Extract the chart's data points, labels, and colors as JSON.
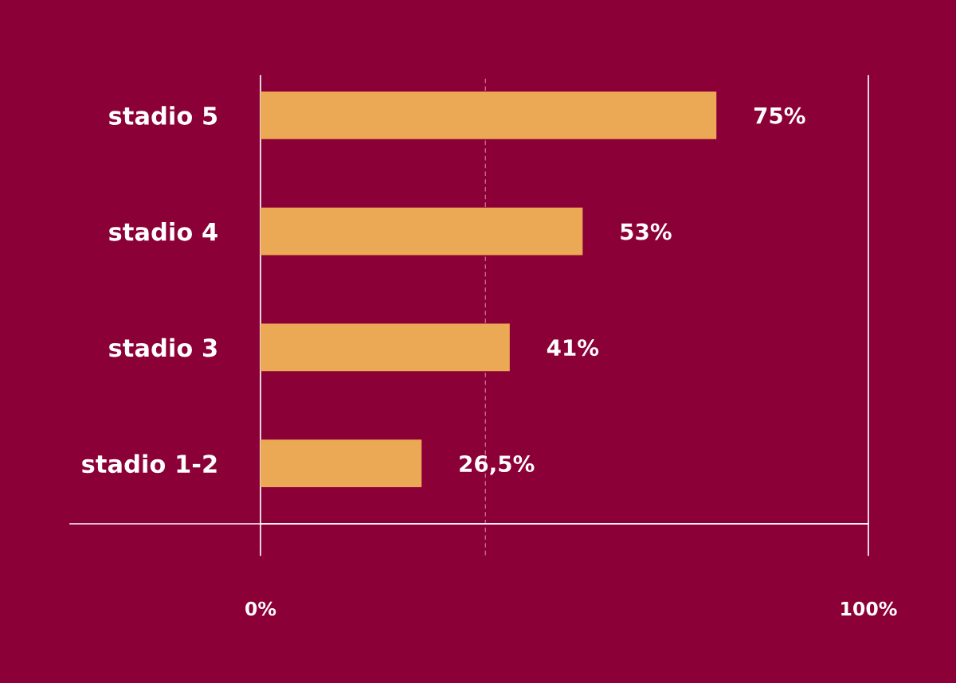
{
  "chart_data": {
    "type": "bar",
    "orientation": "horizontal",
    "categories": [
      "stadio 5",
      "stadio 4",
      "stadio 3",
      "stadio 1-2"
    ],
    "values": [
      75,
      53,
      41,
      26.5
    ],
    "value_labels": [
      "75%",
      "53%",
      "41%",
      "26,5%"
    ],
    "color": "#eba855",
    "xlim": [
      0,
      100
    ],
    "xticks": [
      {
        "value": 0,
        "label": "0%"
      },
      {
        "value": 100,
        "label": "100%"
      }
    ],
    "grid": false,
    "ref_lines": [
      {
        "axis": "x",
        "value": 37,
        "label": null,
        "color": "#c86a8a",
        "line_style": "dashed"
      }
    ]
  }
}
